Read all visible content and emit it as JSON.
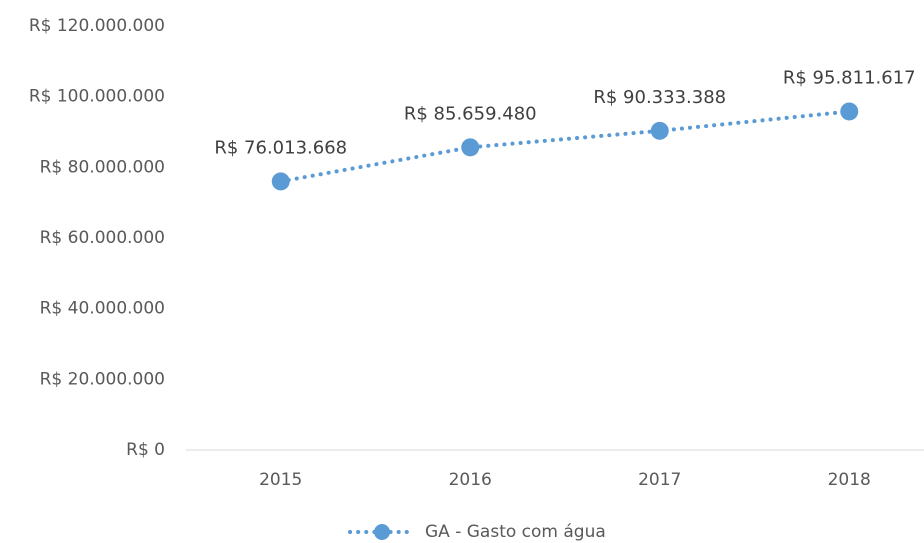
{
  "chart_data": {
    "type": "line",
    "categories": [
      "2015",
      "2016",
      "2017",
      "2018"
    ],
    "series": [
      {
        "name": "GA - Gasto com água",
        "color": "#5b9bd5",
        "values": [
          76013668,
          85659480,
          90333388,
          95811617
        ],
        "value_labels": [
          "R$ 76.013.668",
          "R$ 85.659.480",
          "R$ 90.333.388",
          "R$ 95.811.617"
        ]
      }
    ],
    "ylim": [
      0,
      120000000
    ],
    "yticks": [
      {
        "value": 0,
        "label": "R$ 0"
      },
      {
        "value": 20000000,
        "label": "R$ 20.000.000"
      },
      {
        "value": 40000000,
        "label": "R$ 40.000.000"
      },
      {
        "value": 60000000,
        "label": "R$ 60.000.000"
      },
      {
        "value": 80000000,
        "label": "R$ 80.000.000"
      },
      {
        "value": 100000000,
        "label": "R$ 100.000.000"
      },
      {
        "value": 120000000,
        "label": "R$ 120.000.000"
      }
    ],
    "legend": "bottom"
  }
}
